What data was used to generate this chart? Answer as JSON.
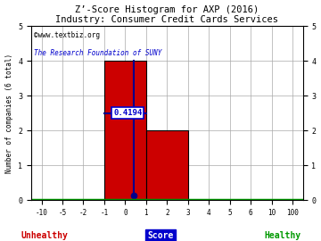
{
  "title": "Z’-Score Histogram for AXP (2016)",
  "subtitle": "Industry: Consumer Credit Cards Services",
  "watermark1": "©www.textbiz.org",
  "watermark2": "The Research Foundation of SUNY",
  "bar_data": [
    {
      "x_left_idx": 3,
      "x_right_idx": 5,
      "height": 4,
      "color": "#cc0000"
    },
    {
      "x_left_idx": 5,
      "x_right_idx": 7,
      "height": 2,
      "color": "#cc0000"
    }
  ],
  "axp_score_idx": 4.4194,
  "axp_score_label": "0.4194",
  "x_ticks": [
    -10,
    -5,
    -2,
    -1,
    0,
    1,
    2,
    3,
    4,
    5,
    6,
    10,
    100
  ],
  "x_tick_labels": [
    "-10",
    "-5",
    "-2",
    "-1",
    "0",
    "1",
    "2",
    "3",
    "4",
    "5",
    "6",
    "10",
    "100"
  ],
  "n_ticks": 13,
  "ylim": [
    0,
    5
  ],
  "yticks": [
    0,
    1,
    2,
    3,
    4,
    5
  ],
  "ylabel": "Number of companies (6 total)",
  "unhealthy_label": "Unhealthy",
  "score_label": "Score",
  "healthy_label": "Healthy",
  "unhealthy_color": "#cc0000",
  "healthy_color": "#009900",
  "bg_color": "#ffffff",
  "grid_color": "#aaaaaa",
  "bar_edge_color": "#000000",
  "title_color": "#000000",
  "watermark1_color": "#000000",
  "watermark2_color": "#0000cc",
  "axvline_color": "#00008b",
  "score_box_facecolor": "#ffffff",
  "score_box_edgecolor": "#0000cc",
  "score_text_color": "#0000cc",
  "bottom_line_color": "#009900",
  "mid_line_height_bar0": 2.5,
  "axp_score_raw": 0.4194,
  "axp_score_tick_val": 0
}
